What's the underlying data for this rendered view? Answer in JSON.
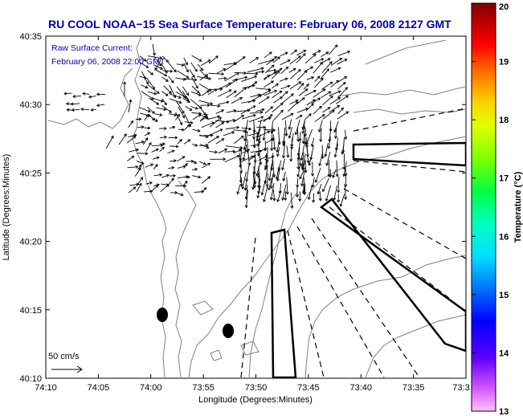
{
  "title": "RU COOL  NOAA−15  Sea Surface Temperature:  February 06, 2008 2127 GMT",
  "legend": {
    "line1": "Raw Surface Current:",
    "line2": "February 06, 2008 22:00 GMT"
  },
  "scale_label": "50 cm/s",
  "axes": {
    "xlabel": "Longitude (Degrees:Minutes)",
    "ylabel": "Latitude (Degrees:Minutes)",
    "x_ticks": [
      "74:10",
      "74:05",
      "74:00",
      "73:55",
      "73:50",
      "73:45",
      "73:40",
      "73:35",
      "73:3"
    ],
    "y_ticks": [
      "40:35",
      "40:30",
      "40:25",
      "40:20",
      "40:15",
      "40:10"
    ]
  },
  "colorbar": {
    "label": "Temperature (°C)",
    "min": 13,
    "max": 20,
    "ticks": [
      "20",
      "19",
      "18",
      "17",
      "16",
      "15",
      "14",
      "13"
    ]
  },
  "colors": {
    "title": "#0000aa",
    "coast": "#808080",
    "vectors": "#000000"
  }
}
